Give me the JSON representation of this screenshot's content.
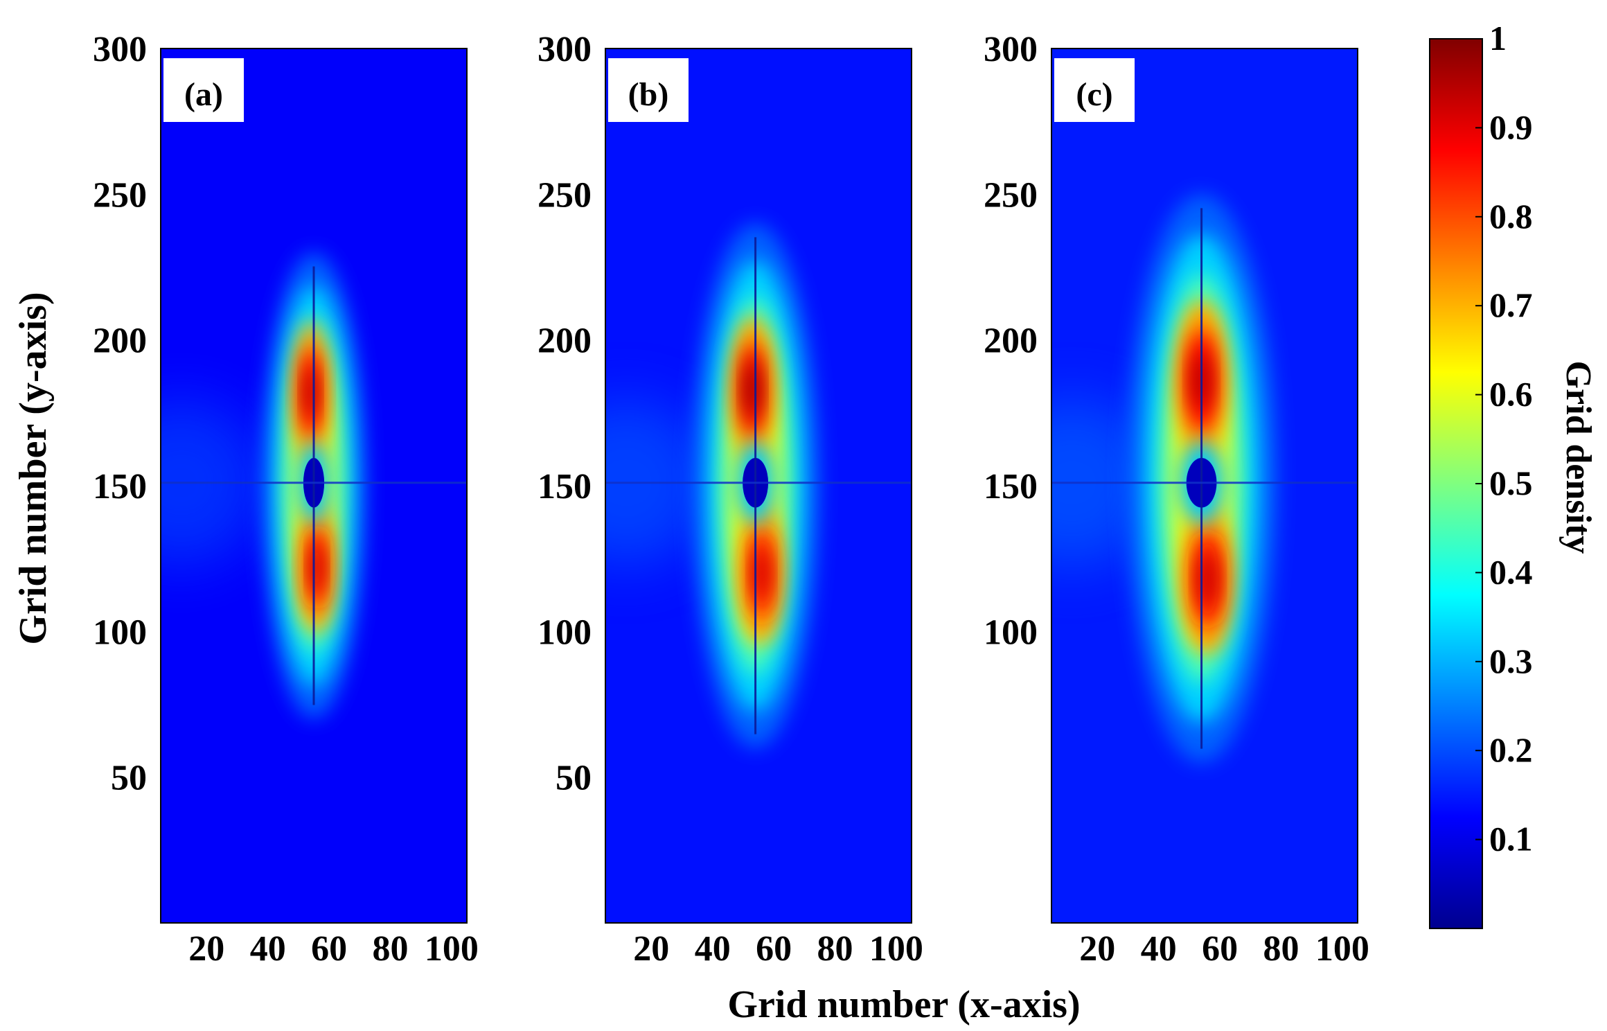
{
  "figure": {
    "xlabel": "Grid number (x-axis)",
    "ylabel": "Grid number (y-axis)"
  },
  "colorbar": {
    "label": "Grid density",
    "range": [
      0,
      1
    ],
    "tick_labels": [
      "0.1",
      "0.2",
      "0.3",
      "0.4",
      "0.5",
      "0.6",
      "0.7",
      "0.8",
      "0.9",
      "1"
    ],
    "tick_values": [
      0.1,
      0.2,
      0.3,
      0.4,
      0.5,
      0.6,
      0.7,
      0.8,
      0.9,
      1.0
    ],
    "colormap": "jet"
  },
  "chart_data": [
    {
      "type": "heatmap",
      "panel_label": "(a)",
      "xlim": [
        5,
        105
      ],
      "ylim": [
        0,
        300
      ],
      "x_tick_labels": [
        "20",
        "40",
        "60",
        "80",
        "100"
      ],
      "x_ticks": [
        20,
        40,
        60,
        80,
        100
      ],
      "y_tick_labels": [
        "50",
        "100",
        "150",
        "200",
        "250",
        "300"
      ],
      "y_ticks": [
        50,
        100,
        150,
        200,
        250,
        300
      ],
      "center": {
        "x": 55,
        "y": 151
      },
      "peaks": [
        {
          "x": 54,
          "y": 182,
          "density": 0.95
        },
        {
          "x": 56,
          "y": 122,
          "density": 0.93
        }
      ],
      "hole_density": 0.05,
      "background_density": 0.12,
      "plume_y_range": [
        70,
        230
      ],
      "plume_half_width_x": 9
    },
    {
      "type": "heatmap",
      "panel_label": "(b)",
      "xlim": [
        5,
        105
      ],
      "ylim": [
        0,
        300
      ],
      "x_tick_labels": [
        "20",
        "40",
        "60",
        "80",
        "100"
      ],
      "x_ticks": [
        20,
        40,
        60,
        80,
        100
      ],
      "y_tick_labels": [
        "50",
        "100",
        "150",
        "200",
        "250",
        "300"
      ],
      "y_ticks": [
        50,
        100,
        150,
        200,
        250,
        300
      ],
      "center": {
        "x": 54,
        "y": 151
      },
      "peaks": [
        {
          "x": 53,
          "y": 183,
          "density": 0.97
        },
        {
          "x": 56,
          "y": 120,
          "density": 0.92
        }
      ],
      "hole_density": 0.05,
      "background_density": 0.14,
      "plume_y_range": [
        60,
        240
      ],
      "plume_half_width_x": 11
    },
    {
      "type": "heatmap",
      "panel_label": "(c)",
      "xlim": [
        5,
        105
      ],
      "ylim": [
        0,
        300
      ],
      "x_tick_labels": [
        "20",
        "40",
        "60",
        "80",
        "100"
      ],
      "x_ticks": [
        20,
        40,
        60,
        80,
        100
      ],
      "y_tick_labels": [
        "100",
        "150",
        "200",
        "250",
        "300"
      ],
      "y_ticks": [
        100,
        150,
        200,
        250,
        300
      ],
      "center": {
        "x": 54,
        "y": 151
      },
      "peaks": [
        {
          "x": 54,
          "y": 186,
          "density": 0.95
        },
        {
          "x": 56,
          "y": 118,
          "density": 0.93
        }
      ],
      "hole_density": 0.05,
      "background_density": 0.15,
      "plume_y_range": [
        55,
        250
      ],
      "plume_half_width_x": 13
    }
  ]
}
